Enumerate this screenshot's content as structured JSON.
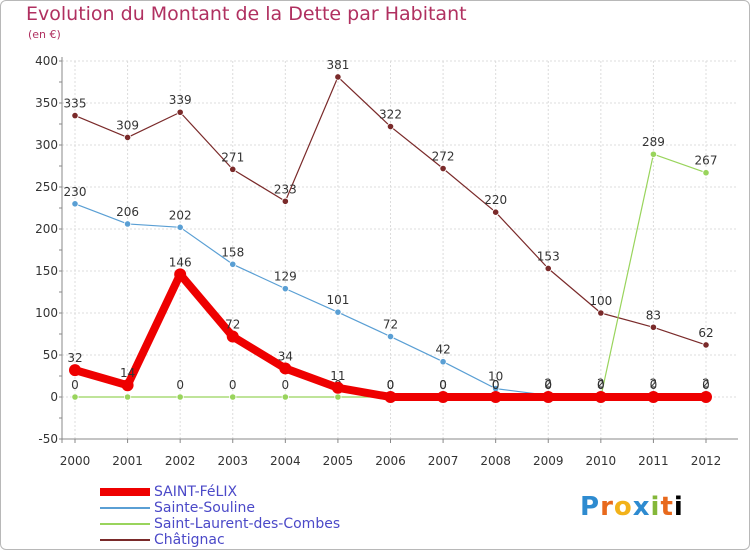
{
  "chart_data": {
    "type": "line",
    "title": "Evolution du Montant de la Dette par Habitant",
    "unit_label": "(en €)",
    "x": [
      "2000",
      "2001",
      "2002",
      "2003",
      "2004",
      "2005",
      "2006",
      "2007",
      "2008",
      "2009",
      "2010",
      "2011",
      "2012"
    ],
    "yticks": [
      400,
      350,
      300,
      250,
      200,
      150,
      100,
      50,
      0,
      -50
    ],
    "ylim": [
      -50,
      400
    ],
    "grid": true,
    "series": [
      {
        "name": "Châtignac",
        "color": "#7a2a2a",
        "values": [
          335,
          309,
          339,
          271,
          233,
          381,
          322,
          272,
          220,
          153,
          100,
          83,
          62
        ],
        "labels": [
          "335",
          "309",
          "339",
          "271",
          "233",
          "381",
          "322",
          "272",
          "220",
          "153",
          "100",
          "83",
          "62"
        ]
      },
      {
        "name": "Sainte-Souline",
        "color": "#5a9fd4",
        "values": [
          230,
          206,
          202,
          158,
          129,
          101,
          72,
          42,
          10,
          2,
          2,
          2,
          2
        ],
        "labels": [
          "230",
          "206",
          "202",
          "158",
          "129",
          "101",
          "72",
          "42",
          "10",
          "2",
          "2",
          "2",
          "2"
        ]
      },
      {
        "name": "Saint-Laurent-des-Combes",
        "color": "#99d45c",
        "values": [
          0,
          0,
          0,
          0,
          0,
          0,
          0,
          0,
          0,
          0,
          0,
          289,
          267
        ],
        "labels": [
          "0",
          "0",
          "0",
          "0",
          "0",
          "0",
          "0",
          "0",
          "0",
          "0",
          "0",
          "289",
          "267"
        ]
      },
      {
        "name": "SAINT-FéLIX",
        "color": "#ee0000",
        "values": [
          32,
          14,
          146,
          72,
          34,
          11,
          0,
          0,
          0,
          0,
          0,
          0,
          0
        ],
        "labels": [
          "32",
          "14",
          "146",
          "72",
          "34",
          "11",
          "0",
          "0",
          "0",
          "0",
          "0",
          "0",
          "0"
        ]
      }
    ],
    "legend_order": [
      "SAINT-FéLIX",
      "Sainte-Souline",
      "Saint-Laurent-des-Combes",
      "Châtignac"
    ]
  },
  "logo": {
    "letters": [
      "P",
      "r",
      "o",
      "x",
      "i",
      "t",
      "i"
    ]
  }
}
